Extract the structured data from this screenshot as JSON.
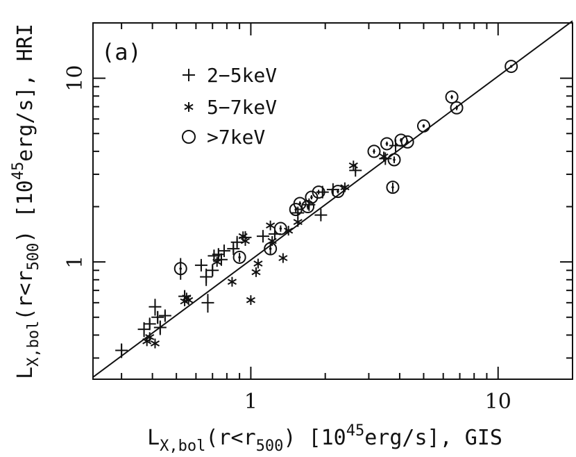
{
  "chart_data": {
    "type": "scatter",
    "title": "",
    "panel_label": "(a)",
    "xscale": "log",
    "yscale": "log",
    "xlim": [
      0.23,
      20
    ],
    "ylim": [
      0.23,
      20
    ],
    "xticks": [
      {
        "value": 1,
        "label": "1"
      },
      {
        "value": 10,
        "label": "10"
      }
    ],
    "yticks": [
      {
        "value": 1,
        "label": "1"
      },
      {
        "value": 10,
        "label": "10"
      }
    ],
    "xlabel": {
      "main": "L",
      "sub": "X,bol",
      "mid1": "(r<r",
      "sub2": "500",
      "mid2": ") [10",
      "sup": "45",
      "tail": "erg/s], GIS"
    },
    "ylabel": {
      "main": "L",
      "sub": "X,bol",
      "mid1": "(r<r",
      "sub2": "500",
      "mid2": ") [10",
      "sup": "45",
      "tail": "erg/s], HRI"
    },
    "legend": {
      "position": "upper-left",
      "entries": [
        {
          "marker": "plus",
          "label": "2−5keV"
        },
        {
          "marker": "star",
          "label": "5−7keV"
        },
        {
          "marker": "circle",
          "label": ">7keV"
        }
      ]
    },
    "fit_line": {
      "x": [
        0.23,
        20
      ],
      "y": [
        0.236,
        20.5
      ]
    },
    "series": [
      {
        "name": "2−5keV",
        "marker": "plus",
        "points": [
          {
            "x": 0.3,
            "y": 0.33,
            "ey_lo": 0.3,
            "ey_hi": 0.36
          },
          {
            "x": 0.37,
            "y": 0.43,
            "ey_lo": 0.39,
            "ey_hi": 0.47
          },
          {
            "x": 0.39,
            "y": 0.46,
            "ey_lo": 0.43,
            "ey_hi": 0.49
          },
          {
            "x": 0.41,
            "y": 0.57,
            "ey_lo": 0.51,
            "ey_hi": 0.63
          },
          {
            "x": 0.42,
            "y": 0.5,
            "ey_lo": 0.46,
            "ey_hi": 0.54
          },
          {
            "x": 0.43,
            "y": 0.44,
            "ey_lo": 0.4,
            "ey_hi": 0.48
          },
          {
            "x": 0.45,
            "y": 0.51,
            "ey_lo": 0.48,
            "ey_hi": 0.54
          },
          {
            "x": 0.54,
            "y": 0.65,
            "ey_lo": 0.6,
            "ey_hi": 0.7
          },
          {
            "x": 0.63,
            "y": 0.96,
            "ey_lo": 0.91,
            "ey_hi": 1.01
          },
          {
            "x": 0.66,
            "y": 0.83,
            "ey_lo": 0.74,
            "ey_hi": 0.92
          },
          {
            "x": 0.67,
            "y": 0.6,
            "ey_lo": 0.53,
            "ey_hi": 0.67
          },
          {
            "x": 0.7,
            "y": 0.9,
            "ey_lo": 0.84,
            "ey_hi": 0.96
          },
          {
            "x": 0.71,
            "y": 1.08,
            "ey_lo": 1.0,
            "ey_hi": 1.16
          },
          {
            "x": 0.74,
            "y": 1.1,
            "ey_lo": 1.02,
            "ey_hi": 1.18
          },
          {
            "x": 0.76,
            "y": 1.03,
            "ey_lo": 0.97,
            "ey_hi": 1.09
          },
          {
            "x": 0.78,
            "y": 1.15,
            "ey_lo": 1.09,
            "ey_hi": 1.21
          },
          {
            "x": 0.85,
            "y": 1.18,
            "ey_lo": 1.12,
            "ey_hi": 1.24
          },
          {
            "x": 0.88,
            "y": 1.28,
            "ey_lo": 1.21,
            "ey_hi": 1.35
          },
          {
            "x": 0.95,
            "y": 1.36,
            "ey_lo": 1.3,
            "ey_hi": 1.42
          },
          {
            "x": 1.12,
            "y": 1.38,
            "ey_lo": 1.32,
            "ey_hi": 1.44
          },
          {
            "x": 1.25,
            "y": 1.42,
            "ey_lo": 1.37,
            "ey_hi": 1.47
          },
          {
            "x": 1.55,
            "y": 1.85,
            "ey_lo": 1.79,
            "ey_hi": 1.91
          },
          {
            "x": 1.72,
            "y": 2.05,
            "ey_lo": 1.99,
            "ey_hi": 2.11
          },
          {
            "x": 1.92,
            "y": 1.8,
            "ey_lo": 1.73,
            "ey_hi": 1.87
          },
          {
            "x": 1.95,
            "y": 2.4,
            "ey_lo": 2.34,
            "ey_hi": 2.46
          },
          {
            "x": 2.15,
            "y": 2.48,
            "ey_lo": 2.42,
            "ey_hi": 2.54
          },
          {
            "x": 2.65,
            "y": 3.15,
            "ey_lo": 3.05,
            "ey_hi": 3.25
          },
          {
            "x": 3.5,
            "y": 3.65,
            "ey_lo": 3.5,
            "ey_hi": 3.8
          },
          {
            "x": 3.85,
            "y": 4.3,
            "ey_lo": 4.15,
            "ey_hi": 4.45
          }
        ]
      },
      {
        "name": "5−7keV",
        "marker": "star",
        "points": [
          {
            "x": 0.38,
            "y": 0.37
          },
          {
            "x": 0.39,
            "y": 0.39
          },
          {
            "x": 0.41,
            "y": 0.36
          },
          {
            "x": 0.54,
            "y": 0.61
          },
          {
            "x": 0.55,
            "y": 0.64
          },
          {
            "x": 0.56,
            "y": 0.62
          },
          {
            "x": 0.73,
            "y": 1.0
          },
          {
            "x": 0.84,
            "y": 0.78
          },
          {
            "x": 0.93,
            "y": 1.38
          },
          {
            "x": 0.95,
            "y": 1.3
          },
          {
            "x": 1.0,
            "y": 0.62
          },
          {
            "x": 1.05,
            "y": 0.88
          },
          {
            "x": 1.07,
            "y": 0.98
          },
          {
            "x": 1.2,
            "y": 1.58
          },
          {
            "x": 1.22,
            "y": 1.3
          },
          {
            "x": 1.35,
            "y": 1.05
          },
          {
            "x": 1.42,
            "y": 1.48
          },
          {
            "x": 1.55,
            "y": 1.65
          },
          {
            "x": 2.4,
            "y": 2.55
          },
          {
            "x": 2.6,
            "y": 3.35
          },
          {
            "x": 3.45,
            "y": 3.75
          }
        ]
      },
      {
        "name": ">7keV",
        "marker": "circle",
        "points": [
          {
            "x": 0.52,
            "y": 0.92,
            "ey_lo": 0.8,
            "ey_hi": 1.05
          },
          {
            "x": 0.9,
            "y": 1.06,
            "ey_lo": 1.0,
            "ey_hi": 1.12
          },
          {
            "x": 1.2,
            "y": 1.18,
            "ey_lo": 1.1,
            "ey_hi": 1.26
          },
          {
            "x": 1.32,
            "y": 1.52,
            "ey_lo": 1.46,
            "ey_hi": 1.58
          },
          {
            "x": 1.52,
            "y": 1.93,
            "ey_lo": 1.86,
            "ey_hi": 2.0
          },
          {
            "x": 1.58,
            "y": 2.08,
            "ey_lo": 2.02,
            "ey_hi": 2.14
          },
          {
            "x": 1.7,
            "y": 2.0,
            "ey_lo": 1.93,
            "ey_hi": 2.07
          },
          {
            "x": 1.76,
            "y": 2.25,
            "ey_lo": 2.19,
            "ey_hi": 2.31
          },
          {
            "x": 1.88,
            "y": 2.4,
            "ey_lo": 2.33,
            "ey_hi": 2.47
          },
          {
            "x": 2.25,
            "y": 2.42,
            "ey_lo": 2.36,
            "ey_hi": 2.48
          },
          {
            "x": 3.15,
            "y": 4.0,
            "ey_lo": 3.88,
            "ey_hi": 4.12
          },
          {
            "x": 3.55,
            "y": 4.4,
            "ey_lo": 4.28,
            "ey_hi": 4.52
          },
          {
            "x": 3.8,
            "y": 3.6,
            "ey_lo": 3.45,
            "ey_hi": 3.75
          },
          {
            "x": 3.75,
            "y": 2.55,
            "ey_lo": 2.4,
            "ey_hi": 2.7
          },
          {
            "x": 4.05,
            "y": 4.6,
            "ey_lo": 4.48,
            "ey_hi": 4.72
          },
          {
            "x": 4.3,
            "y": 4.5,
            "ey_lo": 4.38,
            "ey_hi": 4.62
          },
          {
            "x": 5.0,
            "y": 5.5,
            "ey_lo": 5.38,
            "ey_hi": 5.62
          },
          {
            "x": 6.5,
            "y": 7.9,
            "ey_lo": 7.7,
            "ey_hi": 8.1
          },
          {
            "x": 6.8,
            "y": 6.9,
            "ey_lo": 6.7,
            "ey_hi": 7.1
          },
          {
            "x": 11.3,
            "y": 11.6,
            "ey_lo": 11.4,
            "ey_hi": 11.8
          }
        ]
      }
    ]
  }
}
